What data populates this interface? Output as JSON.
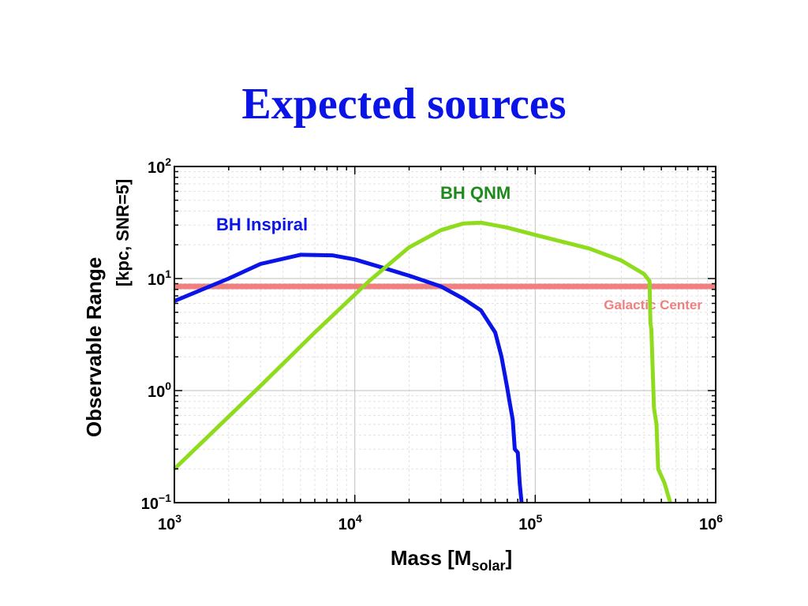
{
  "slide": {
    "title": "Expected sources"
  },
  "chart_data": {
    "type": "line",
    "xscale": "log",
    "yscale": "log",
    "xlim": [
      1000,
      1000000
    ],
    "ylim": [
      0.1,
      100
    ],
    "x_tick_labels": [
      "10^3",
      "10^4",
      "10^5",
      "10^6"
    ],
    "y_tick_labels": [
      "10^-1",
      "10^0",
      "10^1",
      "10^2"
    ],
    "x_tick_values": [
      1000,
      10000,
      100000,
      1000000
    ],
    "y_tick_values": [
      0.1,
      1,
      10,
      100
    ],
    "xlabel": {
      "main": "Mass   [M",
      "sub": "solar",
      "close": "]"
    },
    "ylabel": {
      "line1": "Observable Range",
      "line2": "[kpc, SNR=5]"
    },
    "grid": true,
    "series": [
      {
        "name": "BH Inspiral",
        "color": "#0a14e6",
        "points": [
          [
            1000,
            6.3
          ],
          [
            2000,
            10
          ],
          [
            3000,
            13.5
          ],
          [
            5000,
            16.3
          ],
          [
            7500,
            16.1
          ],
          [
            10000,
            14.8
          ],
          [
            15000,
            12.2
          ],
          [
            20000,
            10.6
          ],
          [
            30000,
            8.5
          ],
          [
            40000,
            6.6
          ],
          [
            50000,
            5.2
          ],
          [
            60000,
            3.3
          ],
          [
            65000,
            2.0
          ],
          [
            70000,
            1.05
          ],
          [
            72000,
            0.8
          ],
          [
            75000,
            0.55
          ],
          [
            77000,
            0.3
          ],
          [
            80000,
            0.28
          ],
          [
            82000,
            0.15
          ],
          [
            84000,
            0.1
          ]
        ]
      },
      {
        "name": "BH QNM",
        "color": "#8fdc1f",
        "points": [
          [
            1000,
            0.2
          ],
          [
            3000,
            1.1
          ],
          [
            6000,
            3.3
          ],
          [
            12000,
            9.5
          ],
          [
            20000,
            19
          ],
          [
            30000,
            27
          ],
          [
            40000,
            31
          ],
          [
            50000,
            31.5
          ],
          [
            70000,
            28.5
          ],
          [
            100000,
            24.5
          ],
          [
            200000,
            18.5
          ],
          [
            300000,
            14.5
          ],
          [
            400000,
            11
          ],
          [
            430000,
            9.5
          ],
          [
            435000,
            4
          ],
          [
            440000,
            3.5
          ],
          [
            455000,
            0.7
          ],
          [
            470000,
            0.5
          ],
          [
            480000,
            0.2
          ],
          [
            520000,
            0.15
          ],
          [
            560000,
            0.1
          ]
        ]
      }
    ],
    "reference_line": {
      "name": "Galactic Center",
      "y": 8.5,
      "color": "#f08080"
    }
  }
}
